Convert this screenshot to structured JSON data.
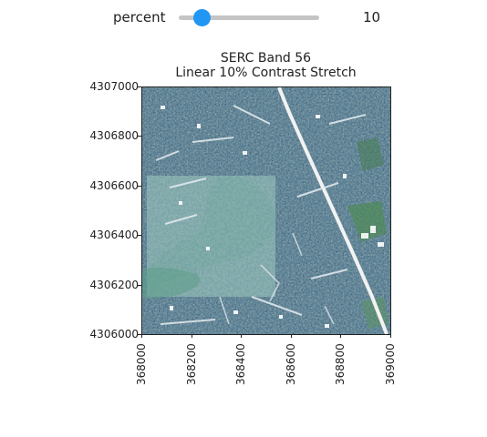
{
  "slider": {
    "label": "percent",
    "value": 10,
    "readout": "10",
    "min": 0,
    "max": 100,
    "accent_color": "#2196f3",
    "track_color": "#c4c4c4"
  },
  "chart_data": {
    "type": "heatmap",
    "title_lines": [
      "SERC Band 56",
      "Linear 10% Contrast Stretch"
    ],
    "xlim": [
      368000,
      369000
    ],
    "ylim": [
      4306000,
      4307000
    ],
    "x_ticks": [
      "368000",
      "368200",
      "368400",
      "368600",
      "368800",
      "369000"
    ],
    "y_ticks": [
      "4307000",
      "4306800",
      "4306600",
      "4306400",
      "4306200",
      "4306000"
    ],
    "colormap": "gist_earth",
    "grid": false
  }
}
